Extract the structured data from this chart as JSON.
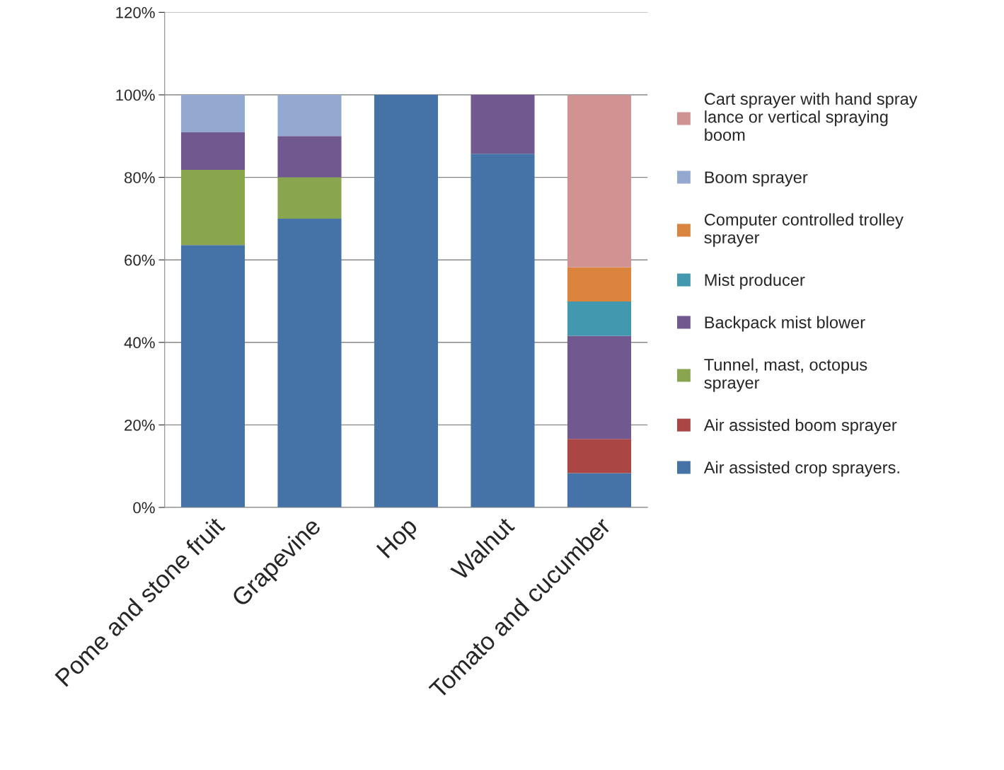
{
  "chart_data": {
    "type": "bar",
    "stacked": true,
    "categories": [
      "Pome and stone fruit",
      "Grapevine",
      "Hop",
      "Walnut",
      "Tomato and cucumber"
    ],
    "series": [
      {
        "name": "Air assisted crop sprayers.",
        "color": "#4572a7",
        "values": [
          63.6,
          70,
          100,
          85.7,
          8.3
        ]
      },
      {
        "name": "Air assisted boom sprayer",
        "color": "#aa4643",
        "values": [
          0,
          0,
          0,
          0,
          8.3
        ]
      },
      {
        "name": "Tunnel, mast, octopus\nsprayer",
        "color": "#89a54e",
        "values": [
          18.2,
          10,
          0,
          0,
          0
        ]
      },
      {
        "name": "Backpack mist blower",
        "color": "#71588f",
        "values": [
          9.1,
          10,
          0,
          14.3,
          25
        ]
      },
      {
        "name": "Mist producer",
        "color": "#4198af",
        "values": [
          0,
          0,
          0,
          0,
          8.3
        ]
      },
      {
        "name": "Computer controlled trolley\nsprayer",
        "color": "#db843d",
        "values": [
          0,
          0,
          0,
          0,
          8.3
        ]
      },
      {
        "name": "Boom sprayer",
        "color": "#93a9cf",
        "values": [
          9.1,
          10,
          0,
          0,
          0
        ]
      },
      {
        "name": "Cart sprayer with hand spray\nlance or vertical spraying\nboom",
        "color": "#d19392",
        "values": [
          0,
          0,
          0,
          0,
          41.7
        ]
      }
    ],
    "ylim": [
      0,
      120
    ],
    "yticks": [
      {
        "value": 0,
        "label": "0%"
      },
      {
        "value": 20,
        "label": "20%"
      },
      {
        "value": 40,
        "label": "40%"
      },
      {
        "value": 60,
        "label": "60%"
      },
      {
        "value": 80,
        "label": "80%"
      },
      {
        "value": 100,
        "label": "100%"
      },
      {
        "value": 120,
        "label": "120%"
      }
    ],
    "grid": "y",
    "legend": "right"
  }
}
